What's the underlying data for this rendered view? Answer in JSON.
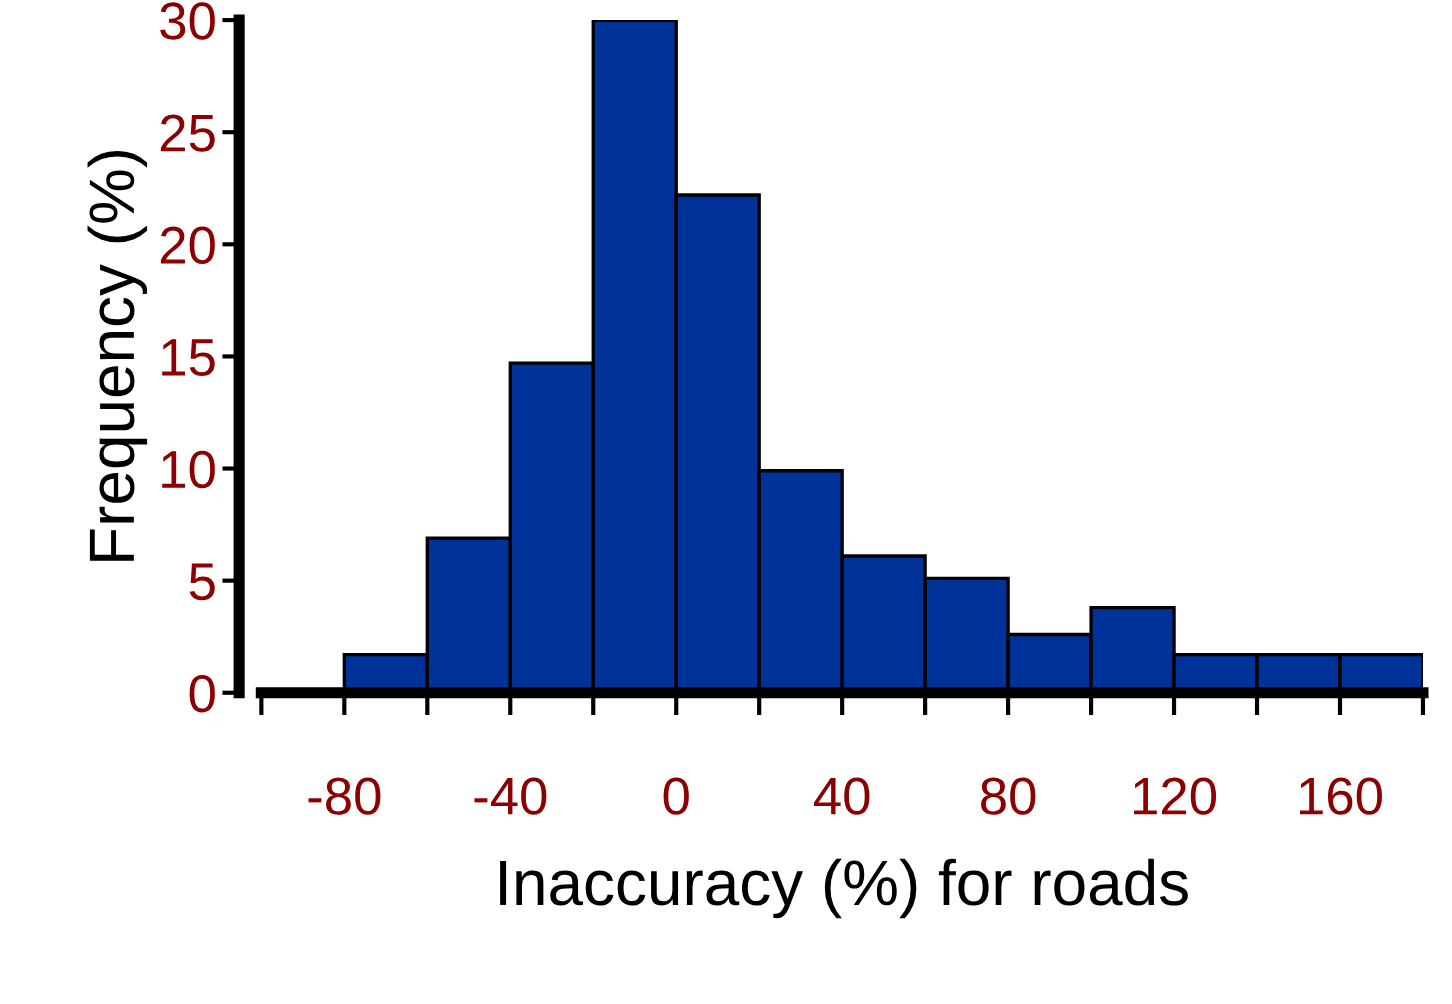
{
  "chart_data": {
    "type": "histogram",
    "xlabel": "Inaccuracy (%) for roads",
    "ylabel": "Frequency (%)",
    "bins": [
      -80,
      -60,
      -40,
      -20,
      0,
      20,
      40,
      60,
      80,
      100,
      120,
      140,
      160,
      180
    ],
    "values": [
      1.7,
      6.9,
      14.7,
      30,
      22.2,
      9.9,
      6.1,
      5.1,
      2.6,
      3.8,
      1.7,
      1.7,
      1.7
    ],
    "color": "#003399",
    "xlim": [
      -100,
      180
    ],
    "ylim": [
      0,
      30
    ],
    "xticks": [
      {
        "value": -100,
        "label": null
      },
      -80,
      {
        "value": -60,
        "label": null
      },
      -40,
      {
        "value": -20,
        "label": null
      },
      0,
      {
        "value": 20,
        "label": null
      },
      40,
      {
        "value": 60,
        "label": null
      },
      80,
      {
        "value": 100,
        "label": null
      },
      120,
      {
        "value": 140,
        "label": null
      },
      160,
      {
        "value": 180,
        "label": null
      }
    ],
    "yticks": [
      0,
      5,
      10,
      15,
      20,
      25,
      30
    ],
    "grid": false,
    "legend": false
  }
}
